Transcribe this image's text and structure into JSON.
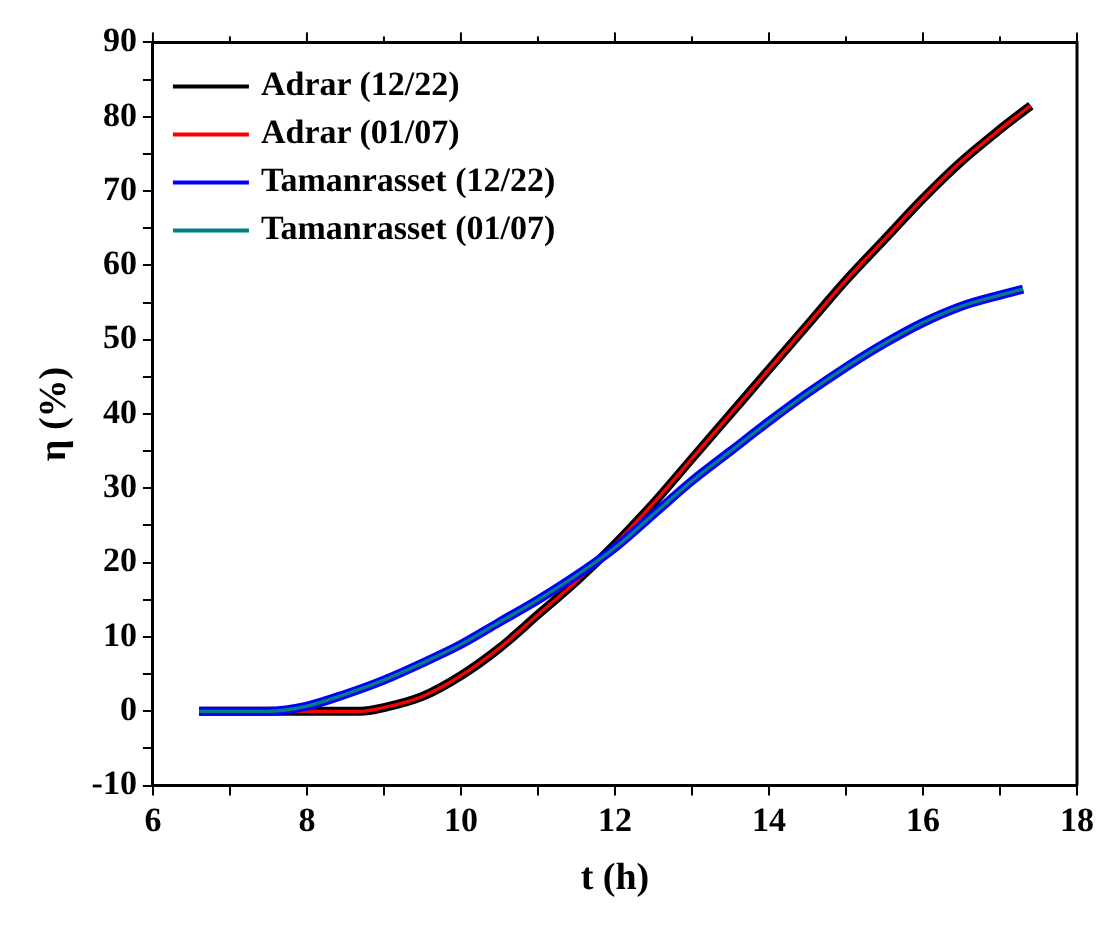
{
  "chart_data": {
    "type": "line",
    "xlabel": "t (h)",
    "ylabel": "η (%)",
    "xlim": [
      6,
      18
    ],
    "xticks": [
      6,
      {
        "value": 7,
        "label": null
      },
      8,
      {
        "value": 9,
        "label": null
      },
      10,
      {
        "value": 11,
        "label": null
      },
      12,
      {
        "value": 13,
        "label": null
      },
      14,
      {
        "value": 15,
        "label": null
      },
      16,
      {
        "value": 17,
        "label": null
      },
      18
    ],
    "ylim": [
      -10,
      90
    ],
    "yticks": [
      -10,
      {
        "value": -5,
        "label": null
      },
      0,
      {
        "value": 5,
        "label": null
      },
      10,
      {
        "value": 15,
        "label": null
      },
      20,
      {
        "value": 25,
        "label": null
      },
      30,
      {
        "value": 35,
        "label": null
      },
      40,
      {
        "value": 45,
        "label": null
      },
      50,
      {
        "value": 55,
        "label": null
      },
      60,
      {
        "value": 65,
        "label": null
      },
      70,
      {
        "value": 75,
        "label": null
      },
      80,
      {
        "value": 85,
        "label": null
      },
      90
    ],
    "grid": false,
    "legend": "top left",
    "marker": "none",
    "line_style": "solid",
    "x": [
      6.6,
      8,
      8.7,
      9,
      9.5,
      10,
      10.5,
      11,
      11.5,
      12,
      12.5,
      13,
      13.5,
      14,
      14.5,
      15,
      15.5,
      16,
      16.5,
      17,
      17.4
    ],
    "series": [
      {
        "name": "Adrar (12/22)",
        "color": "#000000",
        "values": [
          0,
          0,
          0,
          0.5,
          2,
          4.8,
          8.5,
          13,
          17.5,
          22.5,
          28,
          34,
          40,
          46,
          52,
          58,
          63.5,
          69,
          74,
          78.3,
          81.5
        ]
      },
      {
        "name": "Adrar (01/07)",
        "color": "#ff0000",
        "values": [
          0,
          0,
          0,
          0.5,
          2,
          4.8,
          8.5,
          13,
          17.5,
          22.5,
          28,
          34,
          40,
          46,
          52,
          58,
          63.5,
          69,
          74,
          78.3,
          81.5
        ]
      },
      {
        "name": "Tamanrasset (12/22)",
        "color": "#0000ff",
        "x": [
          6.6,
          7.5,
          8,
          8.5,
          9,
          9.5,
          10,
          10.5,
          11,
          11.5,
          12,
          12.5,
          13,
          13.5,
          14,
          14.5,
          15,
          15.5,
          16,
          16.5,
          17,
          17.3
        ],
        "values": [
          0,
          0,
          0.7,
          2.3,
          4.2,
          6.5,
          9,
          12,
          15,
          18.3,
          22,
          26.5,
          31,
          35,
          39,
          42.8,
          46.3,
          49.5,
          52.3,
          54.5,
          56,
          56.8
        ]
      },
      {
        "name": "Tamanrasset (01/07)",
        "color": "#008080",
        "x": [
          6.6,
          7.5,
          8,
          8.5,
          9,
          9.5,
          10,
          10.5,
          11,
          11.5,
          12,
          12.5,
          13,
          13.5,
          14,
          14.5,
          15,
          15.5,
          16,
          16.5,
          17,
          17.3
        ],
        "values": [
          0,
          0,
          0.7,
          2.3,
          4.2,
          6.5,
          9,
          12,
          15,
          18.3,
          22,
          26.5,
          31,
          35,
          39,
          42.8,
          46.3,
          49.5,
          52.3,
          54.5,
          56,
          56.8
        ]
      }
    ]
  }
}
